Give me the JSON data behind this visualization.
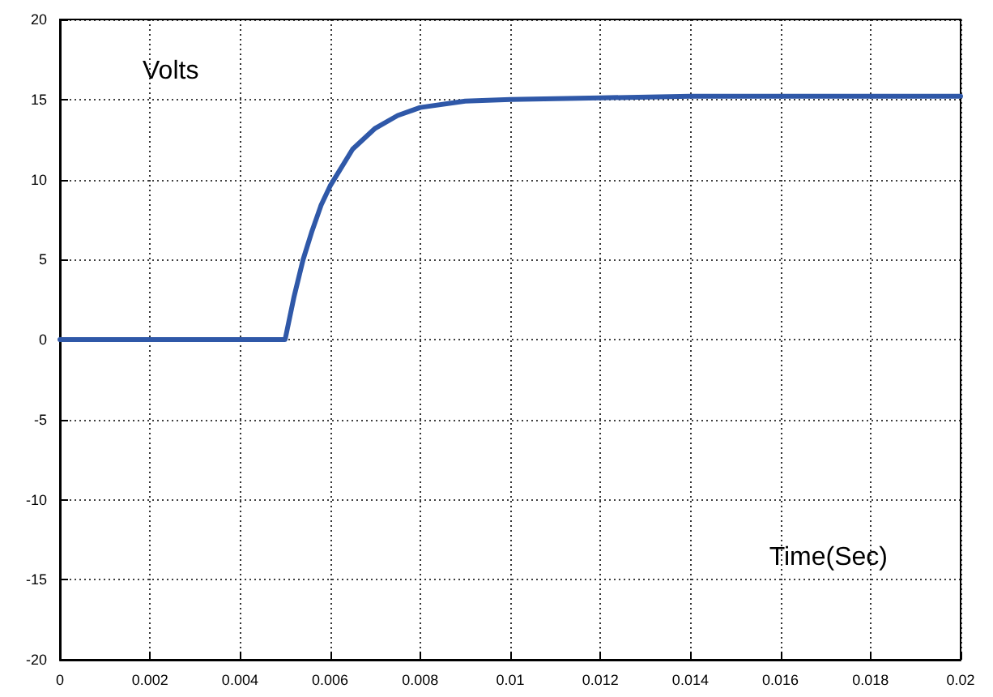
{
  "chart_data": {
    "type": "line",
    "annotations": [
      "Volts",
      "Time(Sec)"
    ],
    "series": [
      {
        "color": "#2f58a8",
        "x": [
          0,
          0.001,
          0.002,
          0.003,
          0.004,
          0.005,
          0.0052,
          0.0054,
          0.0056,
          0.0058,
          0.006,
          0.0065,
          0.007,
          0.0075,
          0.008,
          0.009,
          0.01,
          0.012,
          0.014,
          0.016,
          0.018,
          0.02
        ],
        "values": [
          0,
          0,
          0,
          0,
          0,
          0,
          2.7,
          5,
          6.8,
          8.4,
          9.6,
          11.9,
          13.2,
          14,
          14.5,
          14.9,
          15,
          15.1,
          15.2,
          15.2,
          15.2,
          15.2
        ]
      }
    ],
    "xlim": [
      0,
      0.02
    ],
    "xticks": [
      0,
      0.002,
      0.004,
      0.006,
      0.008,
      0.01,
      0.012,
      0.014,
      0.016,
      0.018,
      0.02
    ],
    "ylim": [
      -20,
      20
    ],
    "yticks": [
      -20,
      -15,
      -10,
      -5,
      0,
      5,
      10,
      15,
      20
    ],
    "grid": true,
    "marker": "none",
    "line_style": "solid"
  }
}
